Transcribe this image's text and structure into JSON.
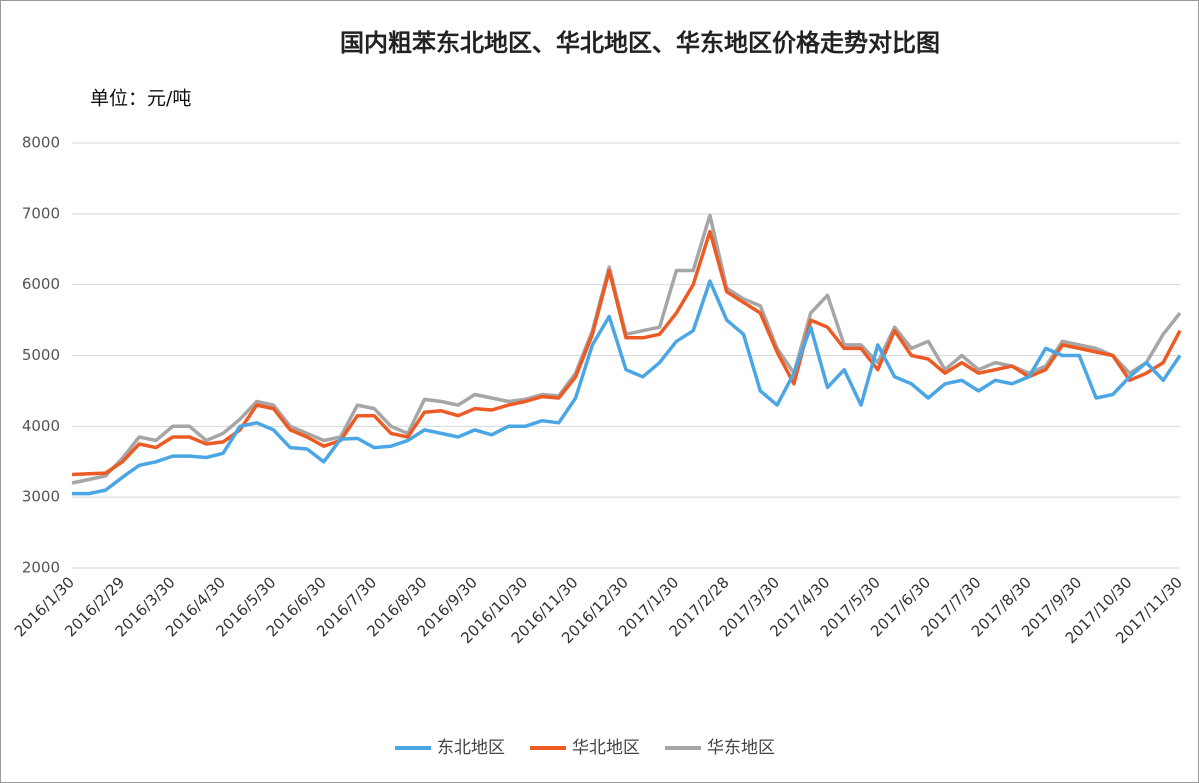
{
  "chart_data": {
    "type": "line",
    "title": "国内粗苯东北地区、华北地区、华东地区价格走势对比图",
    "unit_label": "单位：元/吨",
    "categories": [
      "2016/1/30",
      null,
      null,
      "2016/2/29",
      null,
      null,
      "2016/3/30",
      null,
      null,
      "2016/4/30",
      null,
      null,
      "2016/5/30",
      null,
      null,
      "2016/6/30",
      null,
      null,
      "2016/7/30",
      null,
      null,
      "2016/8/30",
      null,
      null,
      "2016/9/30",
      null,
      null,
      "2016/10/30",
      null,
      null,
      "2016/11/30",
      null,
      null,
      "2016/12/30",
      null,
      null,
      "2017/1/30",
      null,
      null,
      "2017/2/28",
      null,
      null,
      "2017/3/30",
      null,
      null,
      "2017/4/30",
      null,
      null,
      "2017/5/30",
      null,
      null,
      "2017/6/30",
      null,
      null,
      "2017/7/30",
      null,
      null,
      "2017/8/30",
      null,
      null,
      "2017/9/30",
      null,
      null,
      "2017/10/30",
      null,
      null,
      "2017/11/30"
    ],
    "series": [
      {
        "name": "东北地区",
        "color": "#4ba6e5",
        "values": [
          3050,
          3050,
          3100,
          3280,
          3450,
          3500,
          3580,
          3580,
          3560,
          3620,
          4000,
          4050,
          3950,
          3700,
          3680,
          3500,
          3820,
          3830,
          3700,
          3720,
          3800,
          3950,
          3900,
          3850,
          3950,
          3880,
          4000,
          4000,
          4080,
          4050,
          4400,
          5150,
          5550,
          4800,
          4700,
          4900,
          5200,
          5350,
          6050,
          5500,
          5300,
          4500,
          4300,
          4750,
          5400,
          4550,
          4800,
          4300,
          5150,
          4700,
          4600,
          4400,
          4600,
          4650,
          4500,
          4650,
          4600,
          4700,
          5100,
          5000,
          5000,
          4400,
          4450,
          4700,
          4900,
          4650,
          5000
        ]
      },
      {
        "name": "华北地区",
        "color": "#ed5b25",
        "values": [
          3320,
          3330,
          3340,
          3500,
          3750,
          3700,
          3850,
          3850,
          3750,
          3780,
          3950,
          4300,
          4250,
          3950,
          3850,
          3720,
          3800,
          4150,
          4150,
          3900,
          3850,
          4200,
          4220,
          4150,
          4250,
          4230,
          4300,
          4350,
          4420,
          4400,
          4700,
          5300,
          6200,
          5250,
          5250,
          5300,
          5600,
          6000,
          6750,
          5900,
          5750,
          5600,
          5050,
          4600,
          5500,
          5400,
          5100,
          5100,
          4800,
          5350,
          5000,
          4950,
          4750,
          4900,
          4750,
          4800,
          4850,
          4700,
          4800,
          5150,
          5100,
          5050,
          5000,
          4650,
          4750,
          4900,
          5350
        ]
      },
      {
        "name": "华东地区",
        "color": "#a6a6a6",
        "values": [
          3200,
          3250,
          3300,
          3550,
          3850,
          3800,
          4000,
          4000,
          3800,
          3900,
          4100,
          4350,
          4300,
          4000,
          3900,
          3800,
          3850,
          4300,
          4250,
          4000,
          3900,
          4380,
          4350,
          4300,
          4450,
          4400,
          4350,
          4380,
          4450,
          4430,
          4750,
          5350,
          6250,
          5300,
          5350,
          5400,
          6200,
          6200,
          6980,
          5950,
          5800,
          5700,
          5100,
          4750,
          5600,
          5850,
          5150,
          5150,
          4900,
          5400,
          5100,
          5200,
          4800,
          5000,
          4800,
          4900,
          4850,
          4750,
          4850,
          5200,
          5150,
          5100,
          5000,
          4750,
          4900,
          5300,
          5600
        ]
      }
    ],
    "ylim": [
      2000,
      8000
    ],
    "yticks": [
      2000,
      3000,
      4000,
      5000,
      6000,
      7000,
      8000
    ],
    "grid": true,
    "legend": "bottom"
  }
}
